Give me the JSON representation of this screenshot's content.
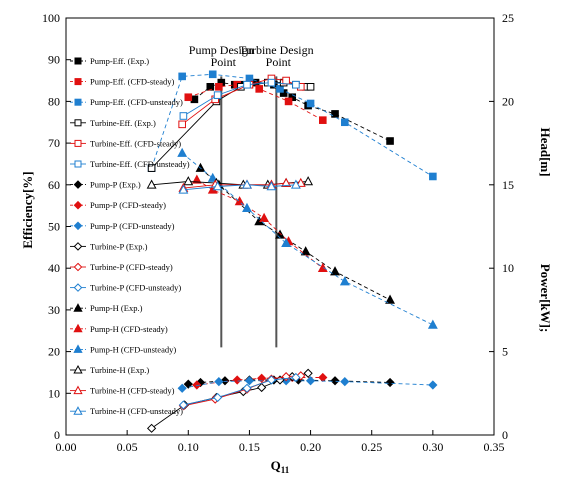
{
  "chart_data": {
    "type": "scatter",
    "xlabel": "Q11",
    "ylabel_left": "Efficiency[%]",
    "ylabel_right_1": "Head[m]",
    "ylabel_right_2": "Power[kW];",
    "xlim": [
      0,
      0.35
    ],
    "ylim_left": [
      0,
      100
    ],
    "ylim_right": [
      0,
      25
    ],
    "x_ticks": [
      0.0,
      0.05,
      0.1,
      0.15,
      0.2,
      0.25,
      0.3,
      0.35
    ],
    "x_tick_labels": [
      "0.00",
      "0.05",
      "0.10",
      "0.15",
      "0.20",
      "0.25",
      "0.30",
      "0.35"
    ],
    "y_left_ticks": [
      0,
      10,
      20,
      30,
      40,
      50,
      60,
      70,
      80,
      90,
      100
    ],
    "y_left_tick_labels": [
      "0",
      "10",
      "20",
      "30",
      "40",
      "50",
      "60",
      "70",
      "80",
      "90",
      "100"
    ],
    "y_right_ticks": [
      0,
      5,
      10,
      15,
      20,
      25
    ],
    "y_right_tick_labels": [
      "0",
      "5",
      "10",
      "15",
      "20",
      "25"
    ],
    "grid": false,
    "legend_position": "left-inside",
    "annotations": [
      {
        "text": "Pump Design",
        "text2": "Point",
        "x": 0.127
      },
      {
        "text": "Turbine Design",
        "text2": "Point",
        "x": 0.172
      }
    ],
    "series": [
      {
        "name": "Pump-Eff. (Exp.)",
        "color": "#000000",
        "marker": "square",
        "filled": true,
        "dashed": true,
        "x": [
          0.105,
          0.118,
          0.127,
          0.138,
          0.145,
          0.155,
          0.17,
          0.178,
          0.185,
          0.198,
          0.22,
          0.265
        ],
        "y": [
          80.5,
          83.5,
          84.5,
          84.0,
          84.0,
          84.5,
          84.0,
          82.0,
          81.0,
          79.0,
          77.0,
          70.5
        ]
      },
      {
        "name": "Pump-Eff. (CFD-steady)",
        "color": "#e01010",
        "marker": "square",
        "filled": true,
        "dashed": true,
        "x": [
          0.1,
          0.125,
          0.14,
          0.158,
          0.182,
          0.21
        ],
        "y": [
          81.0,
          83.5,
          84.0,
          83.0,
          80.0,
          75.5
        ]
      },
      {
        "name": "Pump-Eff. (CFD-unsteady)",
        "color": "#1f7fd0",
        "marker": "square",
        "filled": true,
        "dashed": true,
        "x": [
          0.07,
          0.095,
          0.12,
          0.15,
          0.175,
          0.2,
          0.228,
          0.3
        ],
        "y": [
          64.0,
          86.0,
          86.5,
          85.5,
          83.0,
          79.5,
          75.0,
          62.0
        ]
      },
      {
        "name": "Turbine-Eff. (Exp.)",
        "color": "#000000",
        "marker": "square",
        "filled": false,
        "dashed": false,
        "x": [
          0.07,
          0.123,
          0.143,
          0.165,
          0.178,
          0.188,
          0.196,
          0.2
        ],
        "y": [
          64.0,
          80.0,
          83.5,
          84.5,
          84.5,
          84.0,
          83.5,
          83.5
        ]
      },
      {
        "name": "Turbine-Eff. (CFD-steady)",
        "color": "#e01010",
        "marker": "square",
        "filled": false,
        "dashed": false,
        "x": [
          0.095,
          0.122,
          0.15,
          0.168,
          0.18,
          0.192
        ],
        "y": [
          74.5,
          80.5,
          84.0,
          85.5,
          85.0,
          83.5
        ]
      },
      {
        "name": "Turbine-Eff. (CFD-unsteady)",
        "color": "#1f7fd0",
        "marker": "square",
        "filled": false,
        "dashed": false,
        "x": [
          0.096,
          0.124,
          0.148,
          0.168,
          0.188
        ],
        "y": [
          76.5,
          81.5,
          84.0,
          84.5,
          84.0
        ]
      },
      {
        "name": "Pump-P (Exp.)",
        "color": "#000000",
        "marker": "diamond",
        "filled": true,
        "dashed": true,
        "x": [
          0.1,
          0.11,
          0.13,
          0.15,
          0.17,
          0.19,
          0.22,
          0.265
        ],
        "y": [
          3.05,
          3.15,
          3.25,
          3.3,
          3.3,
          3.3,
          3.25,
          3.15
        ]
      },
      {
        "name": "Pump-P (CFD-steady)",
        "color": "#e01010",
        "marker": "diamond",
        "filled": true,
        "dashed": true,
        "x": [
          0.107,
          0.14,
          0.16,
          0.185,
          0.21
        ],
        "y": [
          3.0,
          3.3,
          3.4,
          3.45,
          3.45
        ]
      },
      {
        "name": "Pump-P (CFD-unsteady)",
        "color": "#1f7fd0",
        "marker": "diamond",
        "filled": true,
        "dashed": true,
        "x": [
          0.095,
          0.125,
          0.15,
          0.18,
          0.2,
          0.228,
          0.3
        ],
        "y": [
          2.8,
          3.2,
          3.25,
          3.25,
          3.25,
          3.2,
          3.0
        ]
      },
      {
        "name": "Turbine-P (Exp.)",
        "color": "#000000",
        "marker": "diamond",
        "filled": false,
        "dashed": false,
        "x": [
          0.07,
          0.097,
          0.123,
          0.145,
          0.16,
          0.175,
          0.185,
          0.198
        ],
        "y": [
          0.4,
          1.8,
          2.25,
          2.6,
          2.85,
          3.3,
          3.5,
          3.7
        ]
      },
      {
        "name": "Turbine-P (CFD-steady)",
        "color": "#e01010",
        "marker": "diamond",
        "filled": false,
        "dashed": false,
        "x": [
          0.096,
          0.122,
          0.148,
          0.168,
          0.18,
          0.192
        ],
        "y": [
          1.75,
          2.15,
          2.75,
          3.35,
          3.5,
          3.55
        ]
      },
      {
        "name": "Turbine-P (CFD-unsteady)",
        "color": "#1f7fd0",
        "marker": "diamond",
        "filled": false,
        "dashed": false,
        "x": [
          0.096,
          0.124,
          0.148,
          0.168,
          0.188
        ],
        "y": [
          1.8,
          2.25,
          2.8,
          3.3,
          3.45
        ]
      },
      {
        "name": "Pump-H (Exp.)",
        "color": "#000000",
        "marker": "triangle",
        "filled": true,
        "dashed": true,
        "x": [
          0.11,
          0.125,
          0.158,
          0.175,
          0.196,
          0.22,
          0.265
        ],
        "y": [
          16.0,
          15.0,
          12.8,
          12.0,
          11.0,
          9.8,
          8.1
        ]
      },
      {
        "name": "Pump-H (CFD-steady)",
        "color": "#e01010",
        "marker": "triangle",
        "filled": true,
        "dashed": true,
        "x": [
          0.107,
          0.12,
          0.142,
          0.162,
          0.182,
          0.21
        ],
        "y": [
          15.3,
          14.7,
          14.0,
          13.0,
          11.6,
          10.0
        ]
      },
      {
        "name": "Pump-H (CFD-unsteady)",
        "color": "#1f7fd0",
        "marker": "triangle",
        "filled": true,
        "dashed": true,
        "x": [
          0.095,
          0.12,
          0.148,
          0.18,
          0.228,
          0.3
        ],
        "y": [
          16.9,
          15.4,
          13.6,
          11.5,
          9.2,
          6.6
        ]
      },
      {
        "name": "Turbine-H (Exp.)",
        "color": "#000000",
        "marker": "triangle",
        "filled": false,
        "dashed": false,
        "x": [
          0.07,
          0.1,
          0.123,
          0.145,
          0.165,
          0.18,
          0.198
        ],
        "y": [
          15.0,
          15.2,
          15.1,
          15.0,
          15.0,
          15.1,
          15.2
        ]
      },
      {
        "name": "Turbine-H (CFD-steady)",
        "color": "#e01010",
        "marker": "triangle",
        "filled": false,
        "dashed": false,
        "x": [
          0.096,
          0.122,
          0.148,
          0.168,
          0.18,
          0.192
        ],
        "y": [
          14.8,
          15.0,
          15.0,
          15.0,
          15.1,
          15.1
        ]
      },
      {
        "name": "Turbine-H (CFD-unsteady)",
        "color": "#1f7fd0",
        "marker": "triangle",
        "filled": false,
        "dashed": false,
        "x": [
          0.096,
          0.124,
          0.148,
          0.168,
          0.188
        ],
        "y": [
          14.7,
          14.9,
          15.0,
          14.9,
          15.0
        ]
      }
    ]
  }
}
